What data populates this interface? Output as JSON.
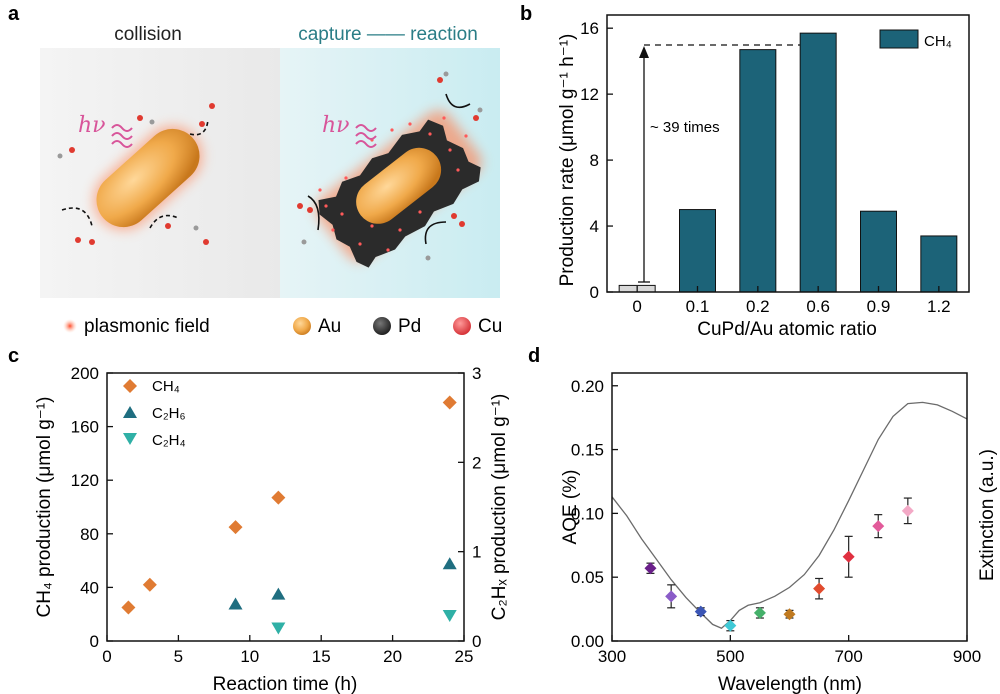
{
  "colors": {
    "bar_teal": "#1c6378",
    "bar_gray": "#d8d8d8",
    "ch4_orange": "#e07b33",
    "c2h6_teal": "#1f6e80",
    "c2h4_teal": "#2fb0a6",
    "au_gold": "#f0a94a",
    "pd_dark": "#3a3a3a",
    "cu_red": "#e8454a",
    "glow_orange": "#ff6b3d",
    "bg_teal": "#cdeef3"
  },
  "panel_a": {
    "letter": "a",
    "label_left": "collision",
    "label_right": "capture —— reaction",
    "hv": "hν",
    "legend": [
      {
        "text": "plasmonic field",
        "icon": "plasmonic-dot-icon"
      },
      {
        "text": "Au",
        "icon": "au-sphere-icon"
      },
      {
        "text": "Pd",
        "icon": "pd-sphere-icon"
      },
      {
        "text": "Cu",
        "icon": "cu-sphere-icon"
      }
    ]
  },
  "chart_data": [
    {
      "panel": "b",
      "type": "bar",
      "categories": [
        "0",
        "0.1",
        "0.2",
        "0.6",
        "0.9",
        "1.2"
      ],
      "series": [
        {
          "name": "CH₄",
          "values": [
            0.4,
            5.0,
            14.7,
            15.7,
            4.9,
            3.4
          ]
        }
      ],
      "xlabel": "CuPd/Au atomic ratio",
      "ylabel": "Production rate (μmol g⁻¹ h⁻¹)",
      "ylim": [
        0,
        16.8
      ],
      "yticks": [
        "0",
        "4",
        "8",
        "12",
        "16"
      ],
      "annotation": "~ 39 times",
      "legend_position": "top-right"
    },
    {
      "panel": "c",
      "type": "scatter",
      "xlabel": "Reaction time (h)",
      "ylabel_left": "CH₄ production (μmol g⁻¹)",
      "ylabel_right": "C₂Hₓ production (μmol g⁻¹)",
      "xlim": [
        0,
        25
      ],
      "ylim_left": [
        0,
        200
      ],
      "ylim_right": [
        0,
        3
      ],
      "xticks": [
        "0",
        "5",
        "10",
        "15",
        "20",
        "25"
      ],
      "yticks_left": [
        "0",
        "40",
        "80",
        "120",
        "160",
        "200"
      ],
      "yticks_right": [
        "0",
        "1",
        "2",
        "3"
      ],
      "series": [
        {
          "name": "CH₄",
          "axis": "left",
          "marker": "diamond",
          "x": [
            1.5,
            3,
            9,
            12,
            24
          ],
          "y": [
            25,
            42,
            85,
            107,
            178
          ]
        },
        {
          "name": "C₂H₆",
          "axis": "right",
          "marker": "triangle-up",
          "x": [
            9,
            12,
            24
          ],
          "y": [
            0.42,
            0.53,
            0.87
          ]
        },
        {
          "name": "C₂H₄",
          "axis": "right",
          "marker": "triangle-down",
          "x": [
            12,
            24
          ],
          "y": [
            0.14,
            0.28
          ]
        }
      ],
      "legend_position": "top-left"
    },
    {
      "panel": "d",
      "type": "scatter",
      "xlabel": "Wavelength (nm)",
      "ylabel_left": "AQE (%)",
      "ylabel_right": "Extinction (a.u.)",
      "xlim": [
        300,
        900
      ],
      "ylim": [
        0,
        0.21
      ],
      "xticks": [
        "300",
        "500",
        "700",
        "900"
      ],
      "yticks": [
        "0.00",
        "0.05",
        "0.10",
        "0.15",
        "0.20"
      ],
      "points": [
        {
          "x": 365,
          "y": 0.057,
          "err": 0.004,
          "color": "#6a1f8a"
        },
        {
          "x": 400,
          "y": 0.035,
          "err": 0.009,
          "color": "#8a5cc8"
        },
        {
          "x": 450,
          "y": 0.023,
          "err": 0.003,
          "color": "#3b55b5"
        },
        {
          "x": 500,
          "y": 0.012,
          "err": 0.004,
          "color": "#3fc9d6"
        },
        {
          "x": 550,
          "y": 0.022,
          "err": 0.004,
          "color": "#45b06a"
        },
        {
          "x": 600,
          "y": 0.021,
          "err": 0.003,
          "color": "#c07a20"
        },
        {
          "x": 650,
          "y": 0.041,
          "err": 0.008,
          "color": "#e14b2e"
        },
        {
          "x": 700,
          "y": 0.066,
          "err": 0.016,
          "color": "#e03040"
        },
        {
          "x": 750,
          "y": 0.09,
          "err": 0.009,
          "color": "#e25a9a"
        },
        {
          "x": 800,
          "y": 0.102,
          "err": 0.01,
          "color": "#f3a9c6"
        }
      ],
      "extinction": {
        "x": [
          300,
          325,
          350,
          375,
          400,
          425,
          450,
          470,
          485,
          500,
          515,
          530,
          550,
          575,
          600,
          625,
          650,
          675,
          700,
          725,
          750,
          775,
          800,
          825,
          850,
          875,
          900
        ],
        "y": [
          0.113,
          0.098,
          0.08,
          0.064,
          0.048,
          0.034,
          0.022,
          0.013,
          0.01,
          0.016,
          0.024,
          0.028,
          0.03,
          0.035,
          0.042,
          0.052,
          0.067,
          0.087,
          0.11,
          0.134,
          0.158,
          0.176,
          0.186,
          0.187,
          0.185,
          0.18,
          0.174
        ]
      }
    }
  ]
}
